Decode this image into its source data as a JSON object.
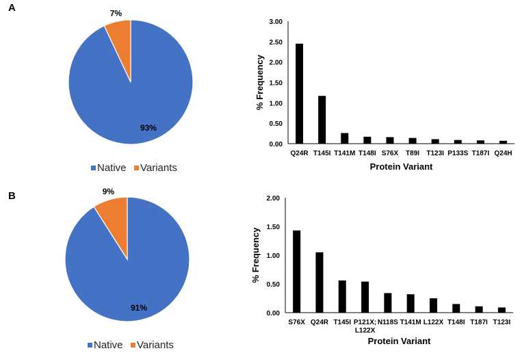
{
  "colors": {
    "native": "#4472C4",
    "variants": "#ED7D31",
    "bar": "#000000"
  },
  "chart_data": [
    {
      "panel": "A",
      "type": "pie",
      "slices": [
        {
          "name": "Native",
          "value": 93,
          "label": "93%"
        },
        {
          "name": "Variants",
          "value": 7,
          "label": "7%"
        }
      ],
      "legend": [
        "Native",
        "Variants"
      ],
      "legend_position": "bottom"
    },
    {
      "panel": "A",
      "type": "bar",
      "categories": [
        "Q24R",
        "T145I",
        "T141M",
        "T148I",
        "S76X",
        "T89I",
        "T123I",
        "P133S",
        "T187I",
        "Q24H"
      ],
      "values": [
        2.45,
        1.17,
        0.26,
        0.17,
        0.16,
        0.14,
        0.11,
        0.09,
        0.08,
        0.07
      ],
      "xlabel": "Protein Variant",
      "ylabel": "% Frequency",
      "ylim": [
        0,
        3
      ],
      "yticks": [
        "0.00",
        "0.50",
        "1.00",
        "1.50",
        "2.00",
        "2.50",
        "3.00"
      ],
      "grid": false
    },
    {
      "panel": "B",
      "type": "pie",
      "slices": [
        {
          "name": "Native",
          "value": 91,
          "label": "91%"
        },
        {
          "name": "Variants",
          "value": 9,
          "label": "9%"
        }
      ],
      "legend": [
        "Native",
        "Variants"
      ],
      "legend_position": "bottom"
    },
    {
      "panel": "B",
      "type": "bar",
      "categories": [
        "S76X",
        "Q24R",
        "T145I",
        "P121X; L122X",
        "N118S",
        "T141M",
        "L122X",
        "T148I",
        "T187I",
        "T123I"
      ],
      "values": [
        1.43,
        1.05,
        0.56,
        0.54,
        0.34,
        0.32,
        0.25,
        0.15,
        0.11,
        0.09
      ],
      "xlabel": "Protein Variant",
      "ylabel": "% Frequency",
      "ylim": [
        0,
        2
      ],
      "yticks": [
        "0.00",
        "0.50",
        "1.00",
        "1.50",
        "2.00"
      ],
      "grid": false
    }
  ]
}
